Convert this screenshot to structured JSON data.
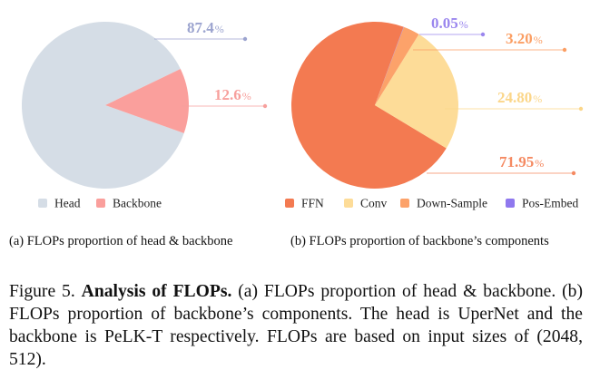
{
  "chart_data": [
    {
      "type": "pie",
      "title": "",
      "categories": [
        "Head",
        "Backbone"
      ],
      "values": [
        87.4,
        12.6
      ],
      "value_labels": [
        "87.4",
        "12.6"
      ],
      "unit": "%",
      "colors": [
        "#d5dde6",
        "#fa9f9c"
      ],
      "label_colors": [
        "#9ca4cf",
        "#f7a09d"
      ],
      "legend": "bottom",
      "caption": "(a) FLOPs proportion of head & backbone"
    },
    {
      "type": "pie",
      "title": "",
      "categories": [
        "FFN",
        "Conv",
        "Down-Sample",
        "Pos-Embed"
      ],
      "values": [
        71.95,
        24.8,
        3.2,
        0.05
      ],
      "value_labels": [
        "71.95",
        "24.80",
        "3.20",
        "0.05"
      ],
      "unit": "%",
      "colors": [
        "#f37a51",
        "#fddc98",
        "#fca26a",
        "#8f78ee"
      ],
      "label_colors": [
        "#f58a62",
        "#fbd689",
        "#fb9e63",
        "#9a86ee"
      ],
      "legend": "bottom",
      "caption": "(b) FLOPs proportion of backbone’s components"
    }
  ],
  "figure_caption": {
    "label": "Figure 5.",
    "bold": "Analysis of FLOPs.",
    "text": "(a) FLOPs proportion of head & backbone. (b) FLOPs proportion of backbone’s components. The head is UperNet and the backbone is PeLK-T respectively. FLOPs are based on input sizes of (2048, 512)."
  }
}
